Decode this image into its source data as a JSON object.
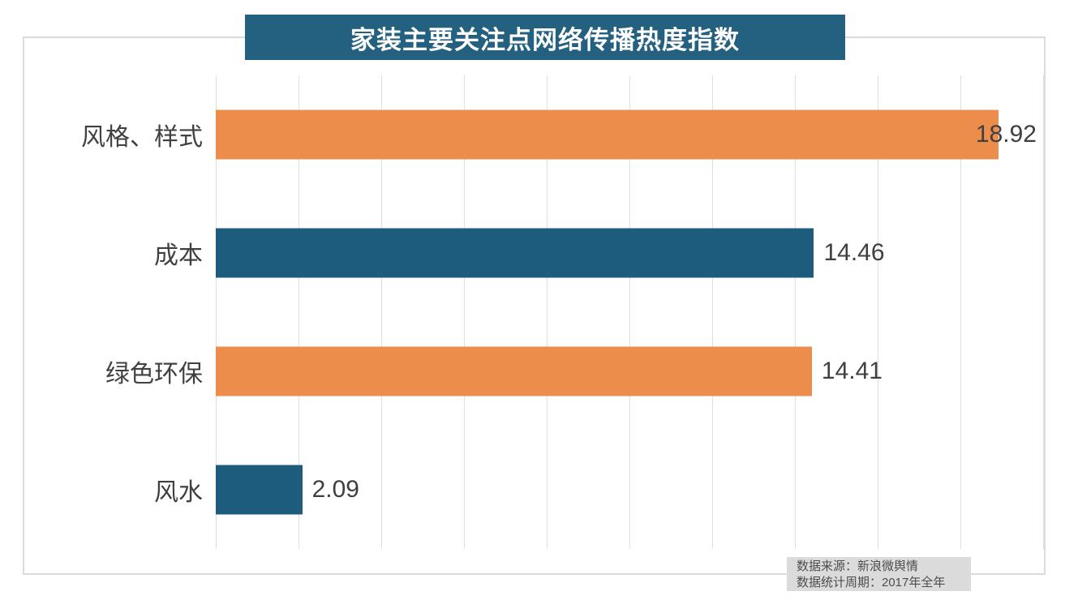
{
  "title": "家装主要关注点网络传播热度指数",
  "source_box": {
    "line1": "数据来源：新浪微舆情",
    "line2": "数据统计周期：2017年全年"
  },
  "colors": {
    "banner_bg": "#24607F",
    "orange": "#ED8D4B",
    "teal": "#1E5C7E",
    "gridline": "#E0E0E0",
    "frame_border": "#DBDBDB",
    "category_text": "#404040",
    "value_text": "#3F3F3F",
    "source_bg": "#DBDBDB",
    "source_text": "#4D4D4D"
  },
  "chart_data": {
    "type": "bar",
    "orientation": "horizontal",
    "title": "家装主要关注点网络传播热度指数",
    "categories": [
      "风格、样式",
      "成本",
      "绿色环保",
      "风水"
    ],
    "values": [
      18.92,
      14.46,
      14.41,
      2.09
    ],
    "value_labels": [
      "18.92",
      "14.46",
      "14.41",
      "2.09"
    ],
    "bar_colors": [
      "#ED8D4B",
      "#1E5C7E",
      "#ED8D4B",
      "#1E5C7E"
    ],
    "xlim": [
      0,
      20
    ],
    "gridline_interval": 2,
    "grid": true,
    "legend": false,
    "xlabel": "",
    "ylabel": "",
    "annotations": [
      "数据来源：新浪微舆情",
      "数据统计周期：2017年全年"
    ]
  }
}
